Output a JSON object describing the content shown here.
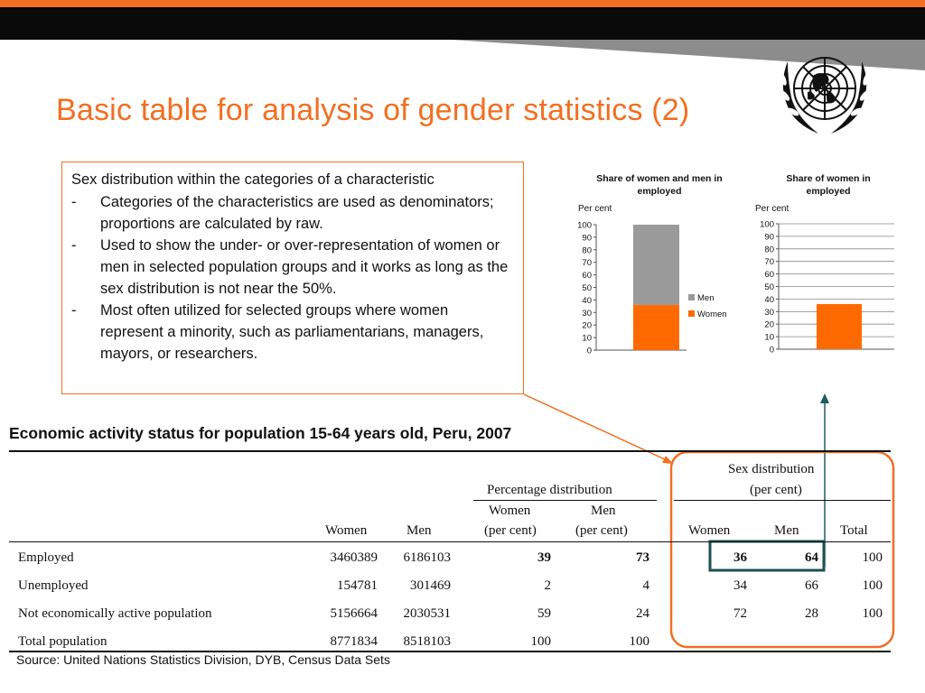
{
  "slide": {
    "title": "Basic table for analysis of gender statistics (2)",
    "colors": {
      "accent": "#f26f21",
      "black_band": "#0a0a0a",
      "grey_band": "#8c8c8c",
      "men_bar": "#9a9a9a",
      "women_bar": "#ff6a00"
    },
    "logo": {
      "icon": "un-emblem-icon"
    }
  },
  "textbox": {
    "heading": "Sex distribution within the categories of a characteristic",
    "bullets": [
      "Categories of the characteristics are used as denominators; proportions are calculated by raw.",
      "Used to show the under- or over-representation of women or men in selected population groups and it works as long as the sex distribution is not near the 50%.",
      "Most often utilized for selected groups where women represent a minority, such as parliamentarians, managers, mayors, or researchers."
    ],
    "bullet_marker": "-"
  },
  "chart_data": [
    {
      "type": "bar",
      "stacked": true,
      "title": "Share of women and men in employed",
      "ylabel": "Per cent",
      "categories": [
        ""
      ],
      "series": [
        {
          "name": "Women",
          "values": [
            36
          ],
          "color": "#ff6a00"
        },
        {
          "name": "Men",
          "values": [
            64
          ],
          "color": "#9a9a9a"
        }
      ],
      "ylim": [
        0,
        100
      ],
      "yticks": [
        0,
        10,
        20,
        30,
        40,
        50,
        60,
        70,
        80,
        90,
        100
      ],
      "grid": false,
      "legend": "right"
    },
    {
      "type": "bar",
      "title": "Share of women in employed",
      "ylabel": "Per cent",
      "categories": [
        ""
      ],
      "values": [
        36
      ],
      "color": "#ff6a00",
      "ylim": [
        0,
        100
      ],
      "yticks": [
        0,
        10,
        20,
        30,
        40,
        50,
        60,
        70,
        80,
        90,
        100
      ],
      "grid": true
    }
  ],
  "table": {
    "caption": "Economic activity status for population 15-64 years old, Peru, 2007",
    "group_headers": {
      "percentage_distribution": "Percentage distribution",
      "sex_distribution_line1": "Sex distribution",
      "sex_distribution_line2": "(per cent)"
    },
    "columns": {
      "women": "Women",
      "men": "Men",
      "pct_women_line1": "Women",
      "pct_women_line2": "(per cent)",
      "pct_men_line1": "Men",
      "pct_men_line2": "(per cent)",
      "sex_women": "Women",
      "sex_men": "Men",
      "sex_total": "Total"
    },
    "rows": [
      {
        "label": "Employed",
        "women": "3460389",
        "men": "6186103",
        "pct_women": "39",
        "pct_men": "73",
        "sex_women": "36",
        "sex_men": "64",
        "sex_total": "100"
      },
      {
        "label": "Unemployed",
        "women": "154781",
        "men": "301469",
        "pct_women": "2",
        "pct_men": "4",
        "sex_women": "34",
        "sex_men": "66",
        "sex_total": "100"
      },
      {
        "label": "Not economically active population",
        "women": "5156664",
        "men": "2030531",
        "pct_women": "59",
        "pct_men": "24",
        "sex_women": "72",
        "sex_men": "28",
        "sex_total": "100"
      },
      {
        "label": "Total population",
        "women": "8771834",
        "men": "8518103",
        "pct_women": "100",
        "pct_men": "100",
        "sex_women": "",
        "sex_men": "",
        "sex_total": ""
      }
    ],
    "source": "Source: United Nations Statistics Division, DYB, Census Data Sets"
  }
}
